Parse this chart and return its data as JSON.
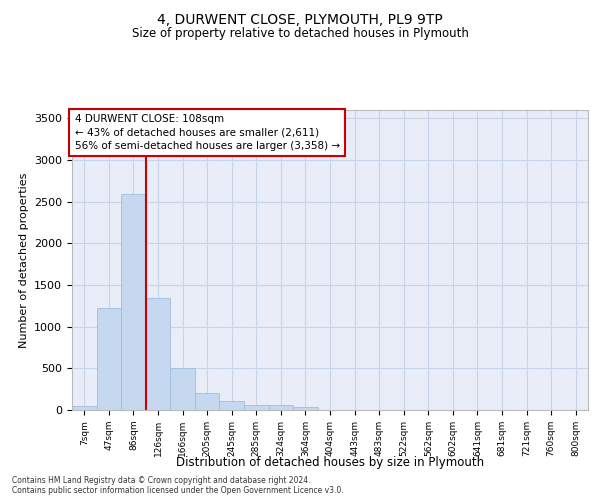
{
  "title": "4, DURWENT CLOSE, PLYMOUTH, PL9 9TP",
  "subtitle": "Size of property relative to detached houses in Plymouth",
  "xlabel": "Distribution of detached houses by size in Plymouth",
  "ylabel": "Number of detached properties",
  "categories": [
    "7sqm",
    "47sqm",
    "86sqm",
    "126sqm",
    "166sqm",
    "205sqm",
    "245sqm",
    "285sqm",
    "324sqm",
    "364sqm",
    "404sqm",
    "443sqm",
    "483sqm",
    "522sqm",
    "562sqm",
    "602sqm",
    "641sqm",
    "681sqm",
    "721sqm",
    "760sqm",
    "800sqm"
  ],
  "bar_values": [
    50,
    1230,
    2590,
    1340,
    500,
    200,
    110,
    55,
    55,
    35,
    0,
    0,
    0,
    0,
    0,
    0,
    0,
    0,
    0,
    0,
    0
  ],
  "bar_color": "#c5d8f0",
  "bar_edge_color": "#a0bedd",
  "vline_x": 3.0,
  "vline_color": "#cc0000",
  "annotation_text": "4 DURWENT CLOSE: 108sqm\n← 43% of detached houses are smaller (2,611)\n56% of semi-detached houses are larger (3,358) →",
  "annotation_box_color": "#cc0000",
  "ylim": [
    0,
    3600
  ],
  "yticks": [
    0,
    500,
    1000,
    1500,
    2000,
    2500,
    3000,
    3500
  ],
  "grid_color": "#c8d4e8",
  "bg_color": "#e8edf8",
  "footer_line1": "Contains HM Land Registry data © Crown copyright and database right 2024.",
  "footer_line2": "Contains public sector information licensed under the Open Government Licence v3.0."
}
